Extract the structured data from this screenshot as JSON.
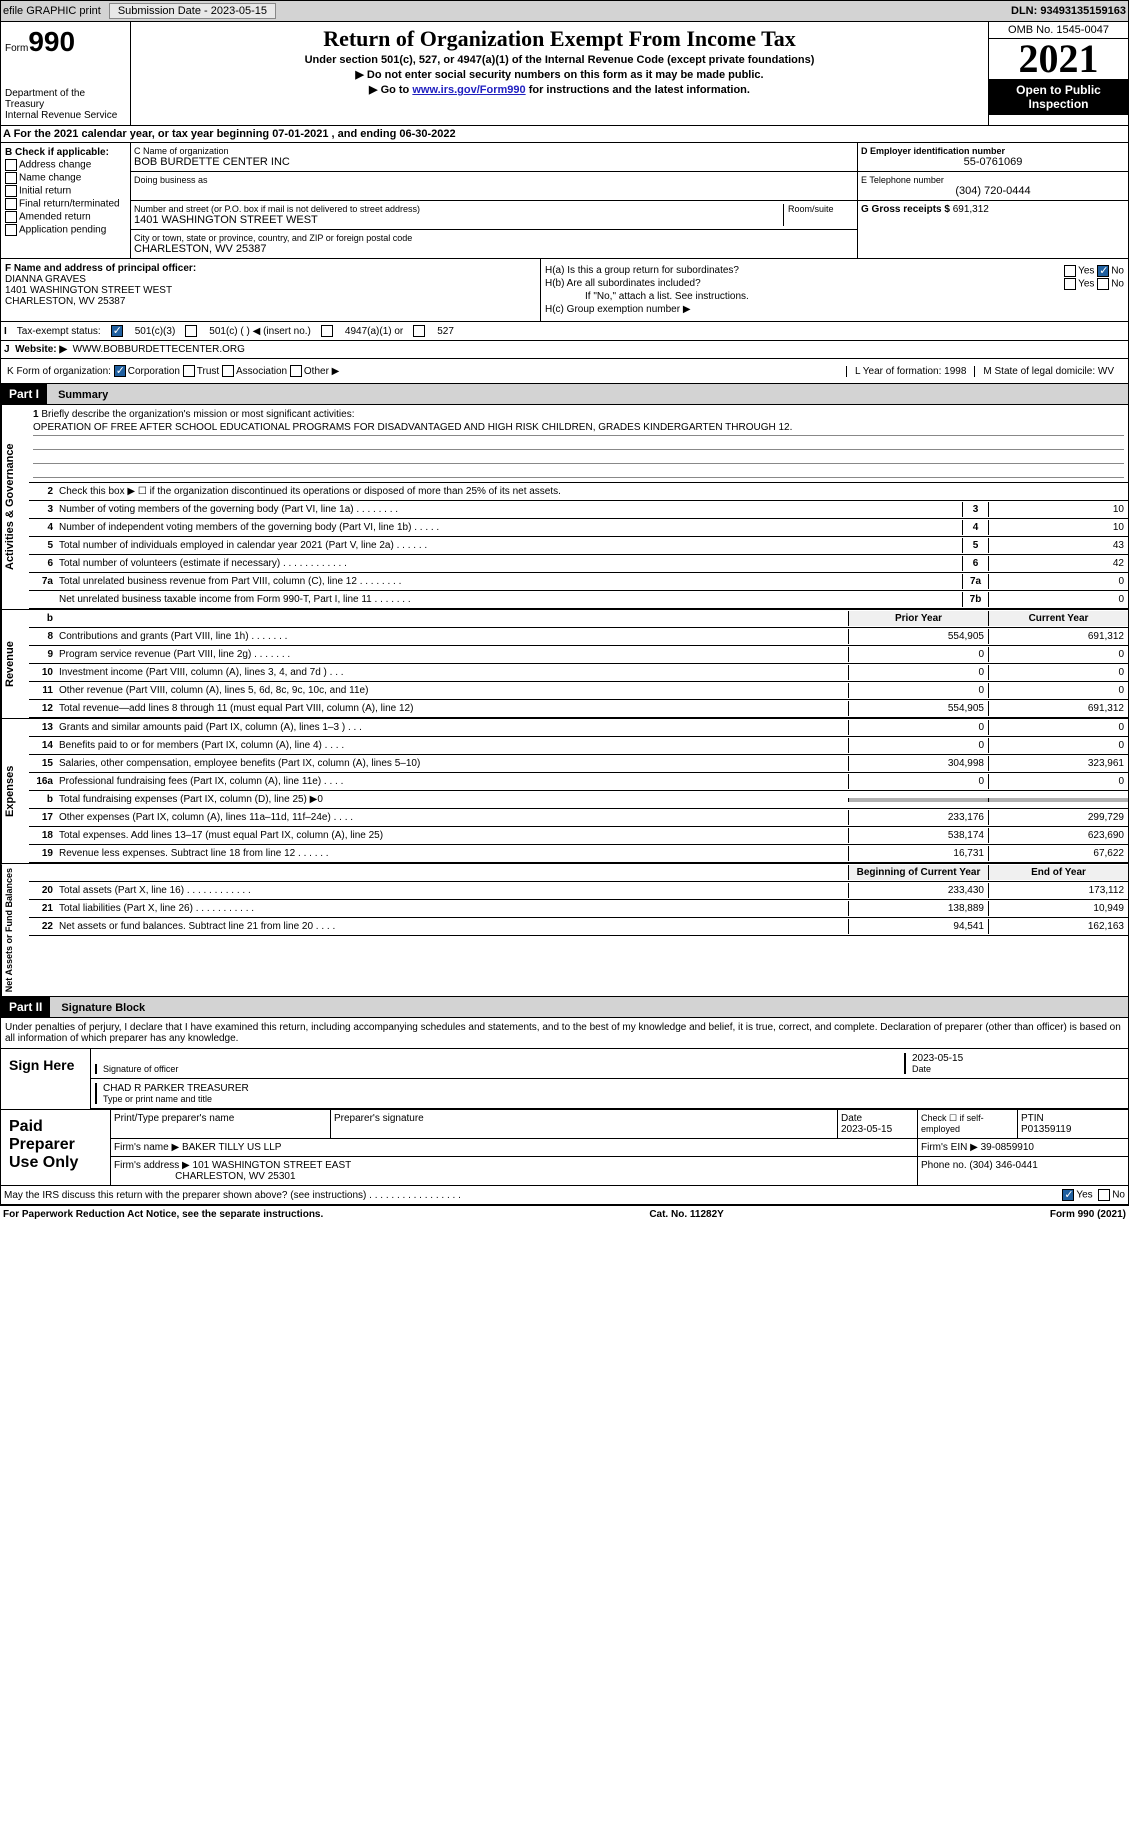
{
  "top": {
    "efile": "efile GRAPHIC print",
    "subdate": "Submission Date - 2023-05-15",
    "dln": "DLN: 93493135159163"
  },
  "header": {
    "form": "Form",
    "f990": "990",
    "dept": "Department of the Treasury",
    "irs": "Internal Revenue Service",
    "title": "Return of Organization Exempt From Income Tax",
    "sub": "Under section 501(c), 527, or 4947(a)(1) of the Internal Revenue Code (except private foundations)",
    "note1": "▶ Do not enter social security numbers on this form as it may be made public.",
    "note2": "▶ Go to ",
    "link": "www.irs.gov/Form990",
    "note2b": " for instructions and the latest information.",
    "omb": "OMB No. 1545-0047",
    "year": "2021",
    "insp1": "Open to Public",
    "insp2": "Inspection"
  },
  "A": {
    "text": "A For the 2021 calendar year, or tax year beginning 07-01-2021    , and ending 06-30-2022"
  },
  "B": {
    "hdr": "B Check if applicable:",
    "items": [
      "Address change",
      "Name change",
      "Initial return",
      "Final return/terminated",
      "Amended return",
      "Application pending"
    ]
  },
  "C": {
    "namelbl": "C Name of organization",
    "name": "BOB BURDETTE CENTER INC",
    "dba": "Doing business as",
    "addrlbl": "Number and street (or P.O. box if mail is not delivered to street address)",
    "room": "Room/suite",
    "addr": "1401 WASHINGTON STREET WEST",
    "citylbl": "City or town, state or province, country, and ZIP or foreign postal code",
    "city": "CHARLESTON, WV  25387"
  },
  "D": {
    "lbl": "D Employer identification number",
    "val": "55-0761069"
  },
  "E": {
    "lbl": "E Telephone number",
    "val": "(304) 720-0444"
  },
  "G": {
    "lbl": "G Gross receipts $",
    "val": "691,312"
  },
  "F": {
    "lbl": "F  Name and address of principal officer:",
    "name": "DIANNA GRAVES",
    "addr": "1401 WASHINGTON STREET WEST",
    "city": "CHARLESTON, WV  25387"
  },
  "H": {
    "a": "H(a)  Is this a group return for subordinates?",
    "b": "H(b)  Are all subordinates included?",
    "bnote": "If \"No,\" attach a list. See instructions.",
    "c": "H(c)  Group exemption number ▶",
    "yes": "Yes",
    "no": "No"
  },
  "I": {
    "lbl": "Tax-exempt status:",
    "c3": "501(c)(3)",
    "c": "501(c) (  ) ◀ (insert no.)",
    "a1": "4947(a)(1) or",
    "s527": "527"
  },
  "J": {
    "lbl": "Website: ▶",
    "val": "WWW.BOBBURDETTECENTER.ORG"
  },
  "K": {
    "lbl": "K Form of organization:",
    "corp": "Corporation",
    "trust": "Trust",
    "assoc": "Association",
    "other": "Other ▶"
  },
  "L": {
    "lbl": "L Year of formation:",
    "val": "1998"
  },
  "M": {
    "lbl": "M State of legal domicile:",
    "val": "WV"
  },
  "parts": {
    "p1": "Part I",
    "p1t": "Summary",
    "p2": "Part II",
    "p2t": "Signature Block"
  },
  "vtabs": {
    "ag": "Activities & Governance",
    "rev": "Revenue",
    "exp": "Expenses",
    "na": "Net Assets or\nFund Balances"
  },
  "s1": {
    "l1": "Briefly describe the organization's mission or most significant activities:",
    "mission": "OPERATION OF FREE AFTER SCHOOL EDUCATIONAL PROGRAMS FOR DISADVANTAGED AND HIGH RISK CHILDREN, GRADES KINDERGARTEN THROUGH 12.",
    "l2": "Check this box ▶ ☐  if the organization discontinued its operations or disposed of more than 25% of its net assets.",
    "rows": [
      {
        "n": "3",
        "d": "Number of voting members of the governing body (Part VI, line 1a)   .     .     .     .     .     .     .     .",
        "b": "3",
        "v": "10"
      },
      {
        "n": "4",
        "d": "Number of independent voting members of the governing body (Part VI, line 1b)  .     .     .     .     .",
        "b": "4",
        "v": "10"
      },
      {
        "n": "5",
        "d": "Total number of individuals employed in calendar year 2021 (Part V, line 2a)   .     .     .     .     .     .",
        "b": "5",
        "v": "43"
      },
      {
        "n": "6",
        "d": "Total number of volunteers (estimate if necessary)     .     .     .     .     .     .     .     .     .     .     .     .",
        "b": "6",
        "v": "42"
      },
      {
        "n": "7a",
        "d": "Total unrelated business revenue from Part VIII, column (C), line 12    .     .     .     .     .     .     .     .",
        "b": "7a",
        "v": "0"
      },
      {
        "n": "",
        "d": "Net unrelated business taxable income from Form 990-T, Part I, line 11  .     .     .     .     .     .     .",
        "b": "7b",
        "v": "0"
      }
    ],
    "cols": {
      "py": "Prior Year",
      "cy": "Current Year",
      "bcy": "Beginning of Current Year",
      "eoy": "End of Year"
    },
    "rev": [
      {
        "n": "8",
        "d": "Contributions and grants (Part VIII, line 1h)   .     .     .     .     .     .     .",
        "p": "554,905",
        "c": "691,312"
      },
      {
        "n": "9",
        "d": "Program service revenue (Part VIII, line 2g)   .     .     .     .     .     .     .",
        "p": "0",
        "c": "0"
      },
      {
        "n": "10",
        "d": "Investment income (Part VIII, column (A), lines 3, 4, and 7d )   .     .     .",
        "p": "0",
        "c": "0"
      },
      {
        "n": "11",
        "d": "Other revenue (Part VIII, column (A), lines 5, 6d, 8c, 9c, 10c, and 11e)",
        "p": "0",
        "c": "0"
      },
      {
        "n": "12",
        "d": "Total revenue—add lines 8 through 11 (must equal Part VIII, column (A), line 12)",
        "p": "554,905",
        "c": "691,312"
      }
    ],
    "exp": [
      {
        "n": "13",
        "d": "Grants and similar amounts paid (Part IX, column (A), lines 1–3 )  .     .     .",
        "p": "0",
        "c": "0"
      },
      {
        "n": "14",
        "d": "Benefits paid to or for members (Part IX, column (A), line 4)  .     .     .     .",
        "p": "0",
        "c": "0"
      },
      {
        "n": "15",
        "d": "Salaries, other compensation, employee benefits (Part IX, column (A), lines 5–10)",
        "p": "304,998",
        "c": "323,961"
      },
      {
        "n": "16a",
        "d": "Professional fundraising fees (Part IX, column (A), line 11e)   .     .     .     .",
        "p": "0",
        "c": "0"
      },
      {
        "n": "b",
        "d": "Total fundraising expenses (Part IX, column (D), line 25) ▶0",
        "p": "GREY",
        "c": "GREY"
      },
      {
        "n": "17",
        "d": "Other expenses (Part IX, column (A), lines 11a–11d, 11f–24e)   .     .     .     .",
        "p": "233,176",
        "c": "299,729"
      },
      {
        "n": "18",
        "d": "Total expenses. Add lines 13–17 (must equal Part IX, column (A), line 25)",
        "p": "538,174",
        "c": "623,690"
      },
      {
        "n": "19",
        "d": "Revenue less expenses. Subtract line 18 from line 12  .     .     .     .     .     .",
        "p": "16,731",
        "c": "67,622"
      }
    ],
    "na": [
      {
        "n": "20",
        "d": "Total assets (Part X, line 16)  .     .     .     .     .     .     .     .     .     .     .     .",
        "p": "233,430",
        "c": "173,112"
      },
      {
        "n": "21",
        "d": "Total liabilities (Part X, line 26)   .     .     .     .     .     .     .     .     .     .     .",
        "p": "138,889",
        "c": "10,949"
      },
      {
        "n": "22",
        "d": "Net assets or fund balances. Subtract line 21 from line 20   .     .     .     .",
        "p": "94,541",
        "c": "162,163"
      }
    ]
  },
  "sig": {
    "decl": "Under penalties of perjury, I declare that I have examined this return, including accompanying schedules and statements, and to the best of my knowledge and belief, it is true, correct, and complete. Declaration of preparer (other than officer) is based on all information of which preparer has any knowledge.",
    "sign": "Sign Here",
    "sigoff": "Signature of officer",
    "date": "Date",
    "sigdate": "2023-05-15",
    "name": "CHAD R PARKER  TREASURER",
    "namelbl": "Type or print name and title"
  },
  "prep": {
    "lbl": "Paid Preparer Use Only",
    "r1": {
      "a": "Print/Type preparer's name",
      "b": "Preparer's signature",
      "c": "Date",
      "cv": "2023-05-15",
      "d": "Check ☐ if self-employed",
      "e": "PTIN",
      "ev": "P01359119"
    },
    "r2": {
      "a": "Firm's name      ▶",
      "av": "BAKER TILLY US LLP",
      "b": "Firm's EIN ▶",
      "bv": "39-0859910"
    },
    "r3": {
      "a": "Firm's address ▶",
      "av": "101 WASHINGTON STREET EAST",
      "av2": "CHARLESTON, WV  25301",
      "b": "Phone no.",
      "bv": "(304) 346-0441"
    }
  },
  "discuss": {
    "q": "May the IRS discuss this return with the preparer shown above? (see instructions)   .     .     .     .     .     .     .     .     .     .     .     .     .     .     .     .     .",
    "yes": "Yes",
    "no": "No"
  },
  "footer": {
    "l": "For Paperwork Reduction Act Notice, see the separate instructions.",
    "c": "Cat. No. 11282Y",
    "r": "Form 990 (2021)"
  }
}
